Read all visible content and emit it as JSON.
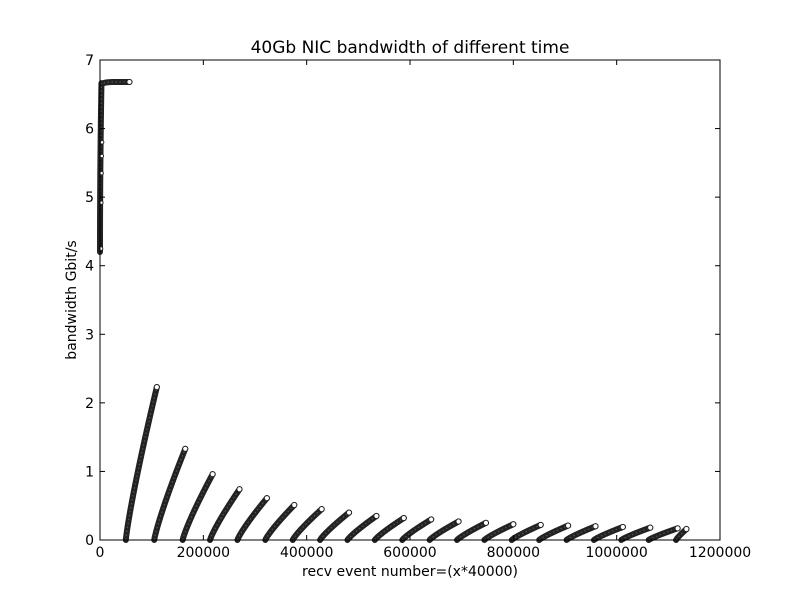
{
  "chart_data": {
    "type": "scatter",
    "title": "40Gb NIC bandwidth of different time",
    "xlabel": "recv event number=(x*40000)",
    "ylabel": "bandwidth Gbit/s",
    "xlim": [
      0,
      1200000
    ],
    "ylim": [
      0,
      7
    ],
    "xticks": [
      0,
      200000,
      400000,
      600000,
      800000,
      1000000,
      1200000
    ],
    "yticks": [
      0,
      1,
      2,
      3,
      4,
      5,
      6,
      7
    ],
    "grid": false,
    "legend": "none",
    "color": "#222222",
    "segments": [
      {
        "x_start": 0,
        "x_end": 57000,
        "y_start": 4.2,
        "y_end": 6.68,
        "shape": "saturating"
      },
      {
        "x_start": 50000,
        "x_end": 110000,
        "y_start": 0.0,
        "y_end": 2.23
      },
      {
        "x_start": 105000,
        "x_end": 165000,
        "y_start": 0.0,
        "y_end": 1.33
      },
      {
        "x_start": 160000,
        "x_end": 218000,
        "y_start": 0.0,
        "y_end": 0.96
      },
      {
        "x_start": 213000,
        "x_end": 270000,
        "y_start": 0.0,
        "y_end": 0.74
      },
      {
        "x_start": 266000,
        "x_end": 323000,
        "y_start": 0.0,
        "y_end": 0.61
      },
      {
        "x_start": 320000,
        "x_end": 376000,
        "y_start": 0.0,
        "y_end": 0.51
      },
      {
        "x_start": 373000,
        "x_end": 429000,
        "y_start": 0.0,
        "y_end": 0.45
      },
      {
        "x_start": 426000,
        "x_end": 482000,
        "y_start": 0.0,
        "y_end": 0.4
      },
      {
        "x_start": 479000,
        "x_end": 535000,
        "y_start": 0.0,
        "y_end": 0.35
      },
      {
        "x_start": 532000,
        "x_end": 588000,
        "y_start": 0.0,
        "y_end": 0.32
      },
      {
        "x_start": 585000,
        "x_end": 641000,
        "y_start": 0.0,
        "y_end": 0.3
      },
      {
        "x_start": 638000,
        "x_end": 694000,
        "y_start": 0.0,
        "y_end": 0.27
      },
      {
        "x_start": 691000,
        "x_end": 747000,
        "y_start": 0.0,
        "y_end": 0.25
      },
      {
        "x_start": 744000,
        "x_end": 800000,
        "y_start": 0.0,
        "y_end": 0.23
      },
      {
        "x_start": 797000,
        "x_end": 853000,
        "y_start": 0.0,
        "y_end": 0.22
      },
      {
        "x_start": 850000,
        "x_end": 906000,
        "y_start": 0.0,
        "y_end": 0.21
      },
      {
        "x_start": 903000,
        "x_end": 959000,
        "y_start": 0.0,
        "y_end": 0.2
      },
      {
        "x_start": 956000,
        "x_end": 1012000,
        "y_start": 0.0,
        "y_end": 0.19
      },
      {
        "x_start": 1009000,
        "x_end": 1065000,
        "y_start": 0.0,
        "y_end": 0.18
      },
      {
        "x_start": 1062000,
        "x_end": 1118000,
        "y_start": 0.0,
        "y_end": 0.17
      },
      {
        "x_start": 1115000,
        "x_end": 1135000,
        "y_start": 0.0,
        "y_end": 0.16
      }
    ]
  }
}
